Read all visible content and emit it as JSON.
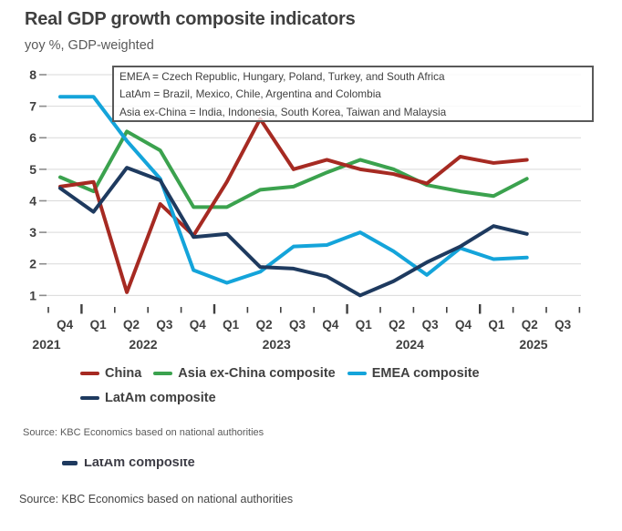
{
  "title": "Real GDP growth composite indicators",
  "subtitle": "yoy %, GDP-weighted",
  "annotation_box": {
    "lines": [
      "EMEA = Czech Republic, Hungary, Poland, Turkey, and South Africa",
      "LatAm = Brazil, Mexico, Chile, Argentina and Colombia",
      "Asia ex-China = India, Indonesia, South Korea, Taiwan and Malaysia"
    ]
  },
  "source_note": "Source: KBC Economics based on national authorities",
  "footer_duplicate": {
    "legend_label": "LatAm composite",
    "source_note": "Source: KBC Economics based on national authorities"
  },
  "chart_data": {
    "type": "line",
    "title": "Real GDP growth composite indicators",
    "ylabel": "yoy %, GDP-weighted",
    "categories": [
      "Q4 2021",
      "Q1 2022",
      "Q2 2022",
      "Q3 2022",
      "Q4 2022",
      "Q1 2023",
      "Q2 2023",
      "Q3 2023",
      "Q4 2023",
      "Q1 2024",
      "Q2 2024",
      "Q3 2024",
      "Q4 2024",
      "Q1 2025",
      "Q2 2025",
      "Q3 2025"
    ],
    "x_tick_labels": [
      "Q4",
      "Q1",
      "Q2",
      "Q3",
      "Q4",
      "Q1",
      "Q2",
      "Q3",
      "Q4",
      "Q1",
      "Q2",
      "Q3",
      "Q4",
      "Q1",
      "Q2",
      "Q3"
    ],
    "year_labels": [
      "2021",
      "2022",
      "2023",
      "2024",
      "2025"
    ],
    "ylim": [
      1,
      8
    ],
    "yticks": [
      1,
      2,
      3,
      4,
      5,
      6,
      7,
      8
    ],
    "grid": "horizontal",
    "legend_position": "bottom",
    "series": [
      {
        "name": "China",
        "color": "#a62a22",
        "values": [
          4.45,
          4.6,
          1.1,
          3.9,
          2.9,
          4.6,
          6.6,
          5.0,
          5.3,
          5.0,
          4.85,
          4.55,
          5.4,
          5.2,
          5.3
        ]
      },
      {
        "name": "Asia ex-China composite",
        "color": "#3ba24e",
        "values": [
          4.75,
          4.3,
          6.2,
          5.6,
          3.8,
          3.8,
          4.35,
          4.45,
          4.9,
          5.3,
          5.0,
          4.5,
          4.3,
          4.15,
          4.7
        ]
      },
      {
        "name": "EMEA composite",
        "color": "#14a4da",
        "values": [
          7.3,
          7.3,
          5.9,
          4.7,
          1.8,
          1.4,
          1.75,
          2.55,
          2.6,
          3.0,
          2.4,
          1.65,
          2.5,
          2.15,
          2.2
        ]
      },
      {
        "name": "LatAm composite",
        "color": "#1e3a5f",
        "values": [
          4.4,
          3.65,
          5.05,
          4.65,
          2.85,
          2.95,
          1.9,
          1.85,
          1.6,
          1.0,
          1.45,
          2.05,
          2.55,
          3.2,
          2.95
        ]
      }
    ],
    "draw_order": [
      1,
      0,
      2,
      3
    ],
    "year_boundary_ticks": [
      1,
      5,
      9,
      13
    ]
  }
}
